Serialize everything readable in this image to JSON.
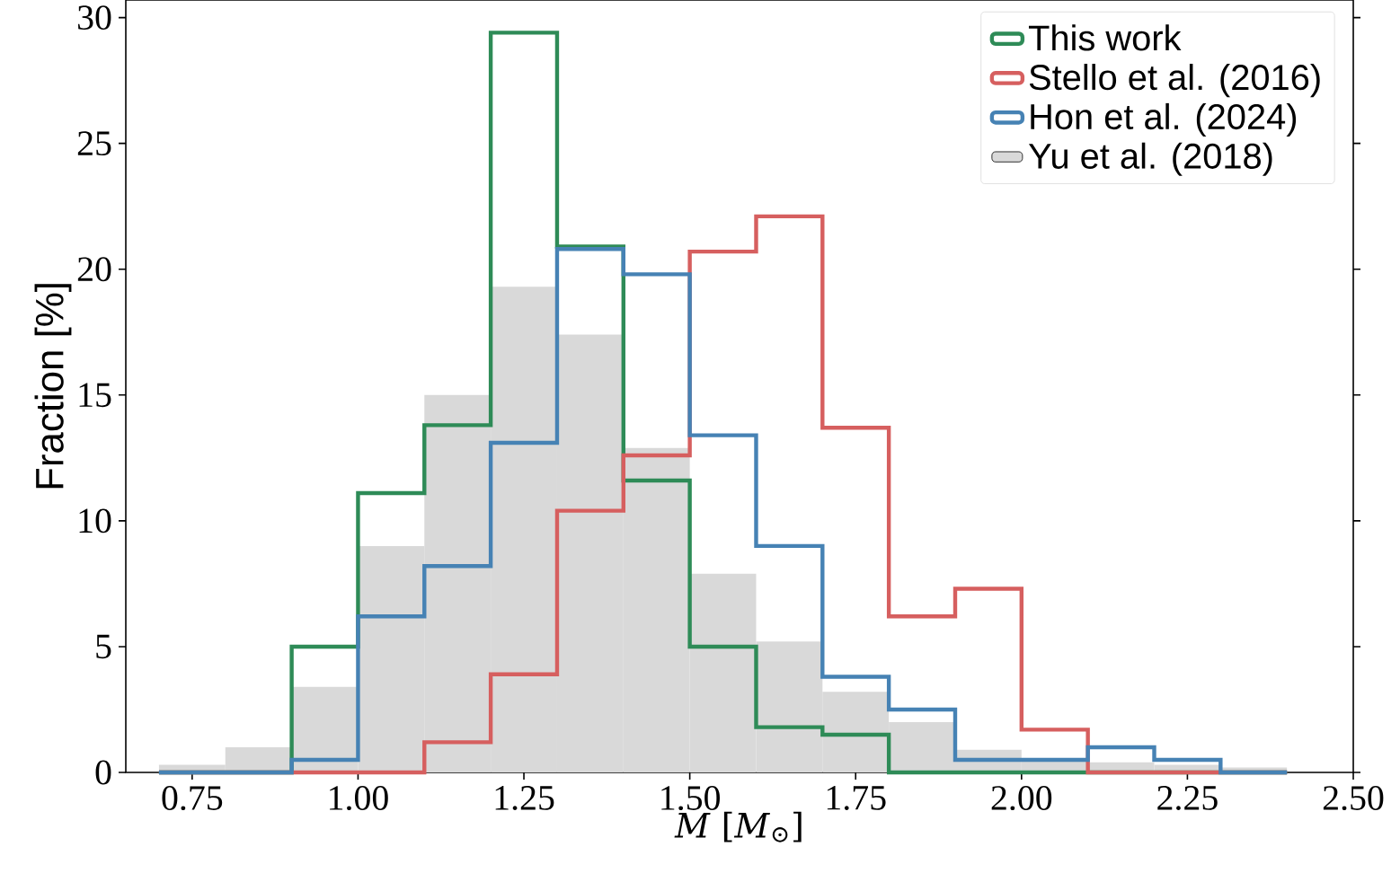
{
  "chart_data": {
    "type": "histogram",
    "xlabel": "*M* [*M*$_{⊙}$]",
    "ylabel": "Fraction [%]",
    "bins": [
      0.7,
      0.8,
      0.9,
      1.0,
      1.1,
      1.2,
      1.3,
      1.4,
      1.5,
      1.6,
      1.7,
      1.8,
      1.9,
      2.0,
      2.1,
      2.2,
      2.3,
      2.4
    ],
    "series": [
      {
        "name": "This work",
        "line_style": "solid",
        "color": "#2e8b57",
        "values": [
          0,
          0,
          5.0,
          11.1,
          13.8,
          29.4,
          20.9,
          11.6,
          5.0,
          1.8,
          1.5,
          0,
          0,
          0,
          0,
          0,
          0
        ]
      },
      {
        "name": "Stello et al. (2016)",
        "line_style": "solid",
        "color": "#d65f5f",
        "values": [
          0,
          0,
          0,
          0,
          1.2,
          3.9,
          10.4,
          12.6,
          20.7,
          22.1,
          13.7,
          6.2,
          7.3,
          1.7,
          0,
          0,
          0
        ]
      },
      {
        "name": "Hon et al. (2024)",
        "line_style": "solid",
        "color": "#4682b4",
        "values": [
          0,
          0,
          0.5,
          6.2,
          8.2,
          13.1,
          20.8,
          19.8,
          13.4,
          9.0,
          3.8,
          2.5,
          0.5,
          0.5,
          1.0,
          0.5,
          0
        ]
      },
      {
        "name": "Yu et al. (2018)",
        "color": "#d9d9d9",
        "values": [
          0.3,
          1.0,
          3.4,
          9.0,
          15.0,
          19.3,
          17.4,
          12.9,
          7.9,
          5.2,
          3.2,
          2.0,
          0.9,
          0.5,
          0.4,
          0.3,
          0.2
        ]
      }
    ],
    "xlim": [
      0.65,
      2.5
    ],
    "ylim": [
      0,
      30.7
    ],
    "xticks": [
      0.75,
      {
        "value": 1.0,
        "label": "1.00"
      },
      1.25,
      {
        "value": 1.5,
        "label": "1.50"
      },
      1.75,
      {
        "value": 2.0,
        "label": "2.00"
      },
      2.25,
      {
        "value": 2.5,
        "label": "2.50"
      }
    ],
    "yticks": [
      0,
      5,
      10,
      15,
      20,
      25,
      30
    ],
    "legend": "top right"
  }
}
